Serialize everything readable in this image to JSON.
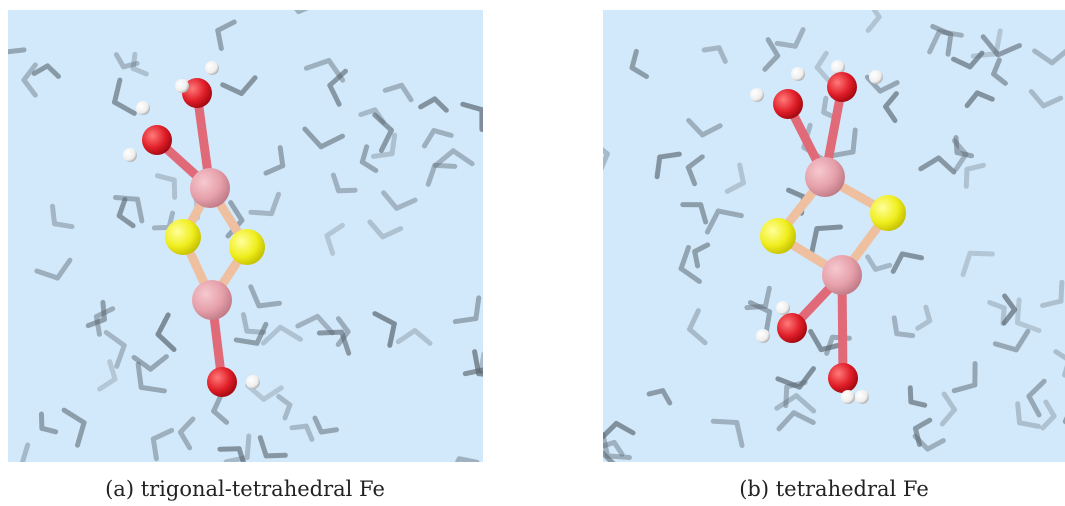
{
  "panels": [
    {
      "caption": "(a) trigonal-tetrahedral Fe"
    },
    {
      "caption": "(b) tetrahedral Fe"
    }
  ]
}
